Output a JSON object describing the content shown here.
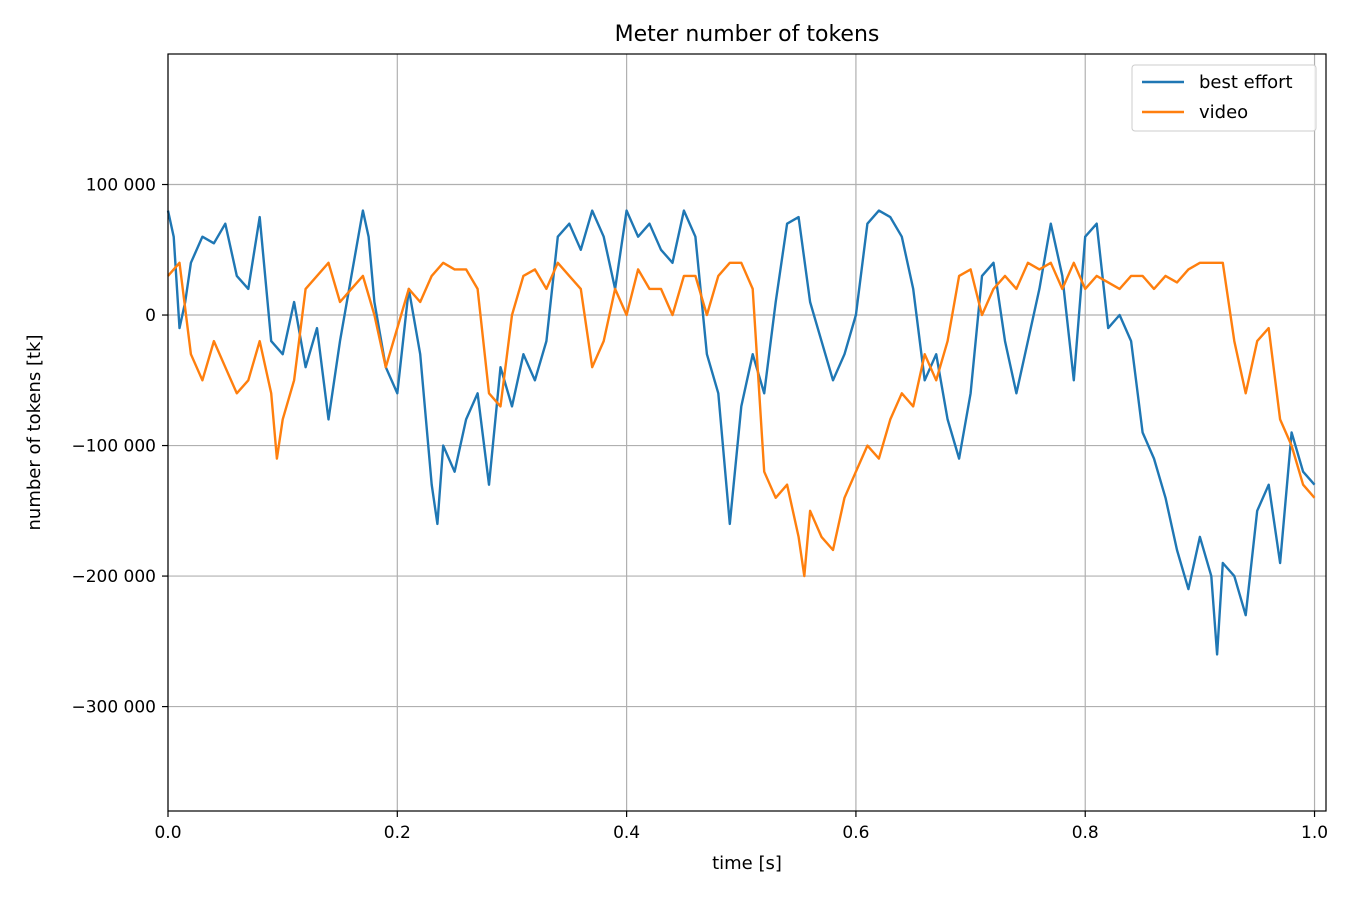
{
  "chart_data": {
    "type": "line",
    "title": "Meter number of tokens",
    "xlabel": "time [s]",
    "ylabel": "number of tokens [tk]",
    "xlim": [
      0.0,
      1.01
    ],
    "ylim": [
      -380000,
      200000
    ],
    "x_ticks": [
      0.0,
      0.2,
      0.4,
      0.6,
      0.8,
      1.0
    ],
    "x_tick_labels": [
      "0.0",
      "0.2",
      "0.4",
      "0.6",
      "0.8",
      "1.0"
    ],
    "y_ticks": [
      100000,
      0,
      -100000,
      -200000,
      -300000
    ],
    "y_tick_labels": [
      "100 000",
      "0",
      "−100 000",
      "−200 000",
      "−300 000"
    ],
    "grid": true,
    "legend_position": "top-right",
    "series": [
      {
        "name": "best effort",
        "color": "#1f77b4",
        "x": [
          0.0,
          0.005,
          0.01,
          0.015,
          0.02,
          0.03,
          0.04,
          0.05,
          0.06,
          0.07,
          0.08,
          0.09,
          0.1,
          0.11,
          0.12,
          0.13,
          0.14,
          0.15,
          0.16,
          0.17,
          0.175,
          0.18,
          0.19,
          0.2,
          0.21,
          0.22,
          0.23,
          0.235,
          0.24,
          0.25,
          0.26,
          0.27,
          0.28,
          0.29,
          0.3,
          0.31,
          0.32,
          0.33,
          0.34,
          0.35,
          0.36,
          0.37,
          0.38,
          0.39,
          0.4,
          0.41,
          0.42,
          0.43,
          0.44,
          0.45,
          0.46,
          0.47,
          0.48,
          0.49,
          0.5,
          0.51,
          0.52,
          0.53,
          0.54,
          0.55,
          0.56,
          0.57,
          0.58,
          0.59,
          0.6,
          0.61,
          0.62,
          0.63,
          0.64,
          0.65,
          0.66,
          0.67,
          0.68,
          0.69,
          0.7,
          0.71,
          0.72,
          0.73,
          0.74,
          0.75,
          0.76,
          0.77,
          0.78,
          0.79,
          0.8,
          0.81,
          0.82,
          0.83,
          0.84,
          0.85,
          0.86,
          0.87,
          0.88,
          0.89,
          0.9,
          0.91,
          0.915,
          0.92,
          0.93,
          0.94,
          0.95,
          0.96,
          0.97,
          0.98,
          0.99,
          1.0
        ],
        "values": [
          80000,
          60000,
          -10000,
          10000,
          40000,
          60000,
          55000,
          70000,
          30000,
          20000,
          75000,
          -20000,
          -30000,
          10000,
          -40000,
          -10000,
          -80000,
          -20000,
          30000,
          80000,
          60000,
          10000,
          -40000,
          -60000,
          20000,
          -30000,
          -130000,
          -160000,
          -100000,
          -120000,
          -80000,
          -60000,
          -130000,
          -40000,
          -70000,
          -30000,
          -50000,
          -20000,
          60000,
          70000,
          50000,
          80000,
          60000,
          20000,
          80000,
          60000,
          70000,
          50000,
          40000,
          80000,
          60000,
          -30000,
          -60000,
          -160000,
          -70000,
          -30000,
          -60000,
          10000,
          70000,
          75000,
          10000,
          -20000,
          -50000,
          -30000,
          0,
          70000,
          80000,
          75000,
          60000,
          20000,
          -50000,
          -30000,
          -80000,
          -110000,
          -60000,
          30000,
          40000,
          -20000,
          -60000,
          -20000,
          20000,
          70000,
          30000,
          -50000,
          60000,
          70000,
          -10000,
          0,
          -20000,
          -90000,
          -110000,
          -140000,
          -180000,
          -210000,
          -170000,
          -200000,
          -260000,
          -190000,
          -200000,
          -230000,
          -150000,
          -130000,
          -190000,
          -90000,
          -120000,
          -130000
        ]
      },
      {
        "name": "video",
        "color": "#ff7f0e",
        "x": [
          0.0,
          0.01,
          0.02,
          0.03,
          0.04,
          0.05,
          0.06,
          0.07,
          0.08,
          0.09,
          0.095,
          0.1,
          0.11,
          0.12,
          0.13,
          0.14,
          0.15,
          0.16,
          0.17,
          0.18,
          0.19,
          0.2,
          0.21,
          0.22,
          0.23,
          0.24,
          0.25,
          0.26,
          0.27,
          0.28,
          0.29,
          0.3,
          0.31,
          0.32,
          0.33,
          0.34,
          0.35,
          0.36,
          0.37,
          0.38,
          0.39,
          0.4,
          0.41,
          0.42,
          0.43,
          0.44,
          0.45,
          0.46,
          0.47,
          0.48,
          0.49,
          0.5,
          0.51,
          0.52,
          0.53,
          0.54,
          0.55,
          0.555,
          0.56,
          0.57,
          0.58,
          0.59,
          0.6,
          0.61,
          0.62,
          0.63,
          0.64,
          0.65,
          0.66,
          0.67,
          0.68,
          0.69,
          0.7,
          0.71,
          0.72,
          0.73,
          0.74,
          0.75,
          0.76,
          0.77,
          0.78,
          0.79,
          0.8,
          0.81,
          0.82,
          0.83,
          0.84,
          0.85,
          0.86,
          0.87,
          0.88,
          0.89,
          0.9,
          0.91,
          0.92,
          0.93,
          0.94,
          0.95,
          0.96,
          0.97,
          0.98,
          0.99,
          1.0
        ],
        "values": [
          30000,
          40000,
          -30000,
          -50000,
          -20000,
          -40000,
          -60000,
          -50000,
          -20000,
          -60000,
          -110000,
          -80000,
          -50000,
          20000,
          30000,
          40000,
          10000,
          20000,
          30000,
          0,
          -40000,
          -10000,
          20000,
          10000,
          30000,
          40000,
          35000,
          35000,
          20000,
          -60000,
          -70000,
          0,
          30000,
          35000,
          20000,
          40000,
          30000,
          20000,
          -40000,
          -20000,
          20000,
          0,
          35000,
          20000,
          20000,
          0,
          30000,
          30000,
          0,
          30000,
          40000,
          40000,
          20000,
          -120000,
          -140000,
          -130000,
          -170000,
          -200000,
          -150000,
          -170000,
          -180000,
          -140000,
          -120000,
          -100000,
          -110000,
          -80000,
          -60000,
          -70000,
          -30000,
          -50000,
          -20000,
          30000,
          35000,
          0,
          20000,
          30000,
          20000,
          40000,
          35000,
          40000,
          20000,
          40000,
          20000,
          30000,
          25000,
          20000,
          30000,
          30000,
          20000,
          30000,
          25000,
          35000,
          40000,
          40000,
          40000,
          -20000,
          -60000,
          -20000,
          -10000,
          -80000,
          -100000,
          -130000,
          -140000
        ]
      }
    ]
  }
}
